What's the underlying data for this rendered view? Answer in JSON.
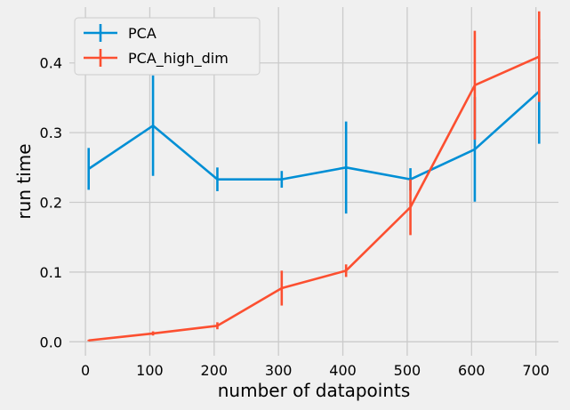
{
  "chart_data": {
    "type": "line",
    "xlabel": "number of datapoints",
    "ylabel": "run time",
    "xlim": [
      -25,
      735
    ],
    "ylim": [
      -0.02,
      0.48
    ],
    "xticks": [
      0,
      100,
      200,
      300,
      400,
      500,
      600,
      700
    ],
    "yticks": [
      0.0,
      0.1,
      0.2,
      0.3,
      0.4
    ],
    "grid": true,
    "legend_position": "top-left",
    "series": [
      {
        "name": "PCA",
        "color": "#008fd5",
        "x": [
          5,
          105,
          205,
          305,
          405,
          505,
          605,
          705
        ],
        "y": [
          0.248,
          0.31,
          0.233,
          0.233,
          0.25,
          0.233,
          0.276,
          0.359
        ],
        "err": [
          0.03,
          0.072,
          0.017,
          0.012,
          0.066,
          0.016,
          0.075,
          0.075
        ]
      },
      {
        "name": "PCA_high_dim",
        "color": "#fc4f30",
        "x": [
          5,
          105,
          205,
          305,
          405,
          505,
          605,
          705
        ],
        "y": [
          0.002,
          0.012,
          0.023,
          0.077,
          0.102,
          0.193,
          0.368,
          0.409
        ],
        "err": [
          0.001,
          0.003,
          0.005,
          0.025,
          0.009,
          0.04,
          0.078,
          0.065
        ]
      }
    ]
  }
}
